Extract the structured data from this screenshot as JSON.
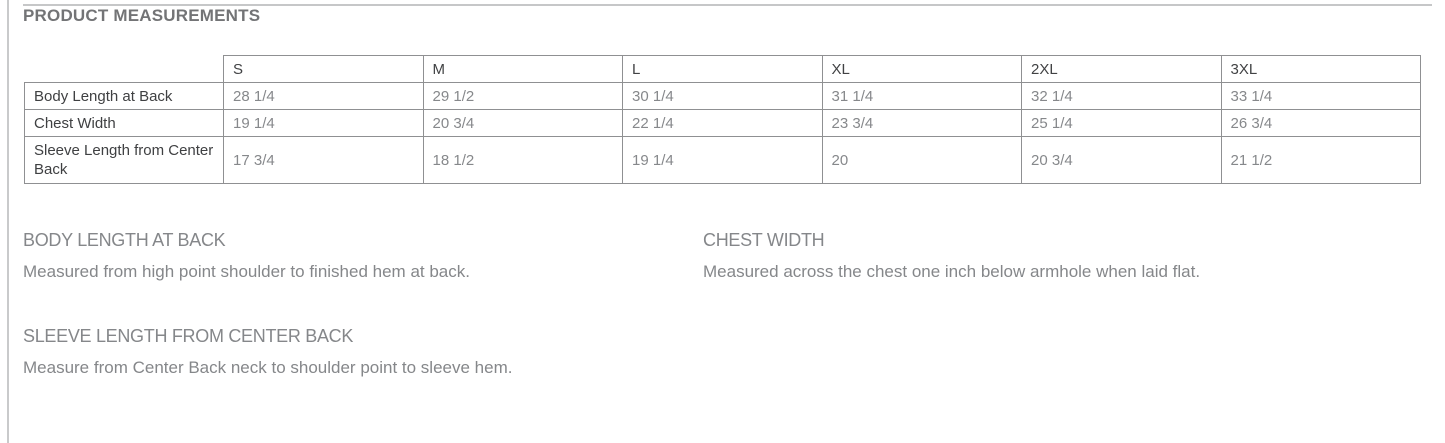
{
  "page": {
    "title": "PRODUCT MEASUREMENTS"
  },
  "table": {
    "columns": [
      "S",
      "M",
      "L",
      "XL",
      "2XL",
      "3XL"
    ],
    "rows": [
      {
        "label": "Body Length at Back",
        "values": [
          "28 1/4",
          "29 1/2",
          "30 1/4",
          "31 1/4",
          "32 1/4",
          "33 1/4"
        ]
      },
      {
        "label": "Chest Width",
        "values": [
          "19 1/4",
          "20 3/4",
          "22 1/4",
          "23 3/4",
          "25 1/4",
          "26 3/4"
        ]
      },
      {
        "label": "Sleeve Length from Center Back",
        "values": [
          "17 3/4",
          "18 1/2",
          "19 1/4",
          "20",
          "20 3/4",
          "21 1/2"
        ]
      }
    ]
  },
  "sections": [
    {
      "heading": "BODY LENGTH AT BACK",
      "description": "Measured from high point shoulder to finished hem at back."
    },
    {
      "heading": "CHEST WIDTH",
      "description": "Measured across the chest one inch below armhole when laid flat."
    },
    {
      "heading": "SLEEVE LENGTH FROM CENTER BACK",
      "description": "Measure from Center Back neck to shoulder point to sleeve hem."
    }
  ],
  "colors": {
    "background": "#ffffff",
    "page_title_text": "#737476",
    "table_border": "#8f9092",
    "row_label_text": "#3f4042",
    "value_text": "#86888b",
    "section_text": "#85878a",
    "divider_line": "#c9cacb"
  }
}
